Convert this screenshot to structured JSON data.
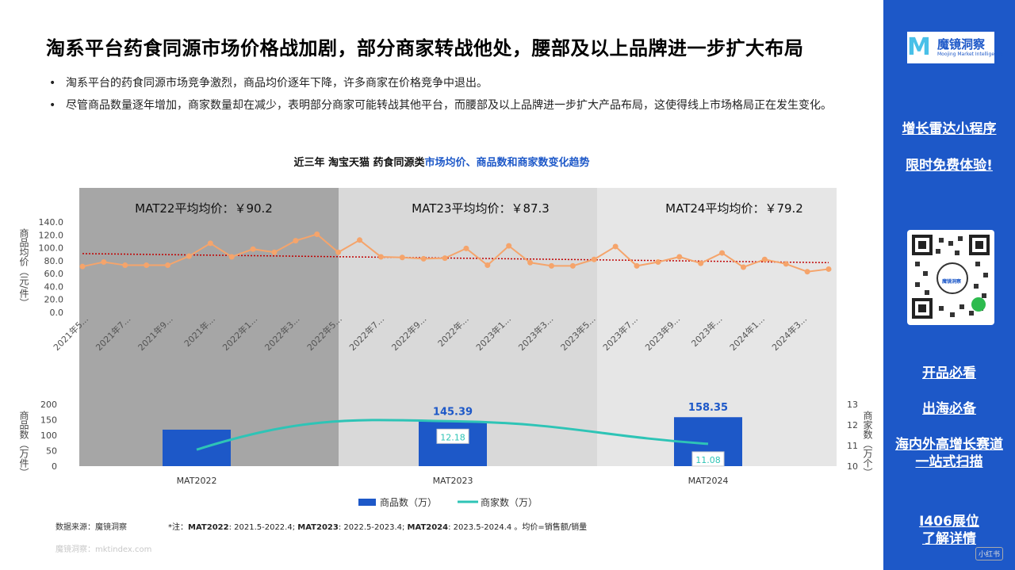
{
  "title": "淘系平台药食同源市场价格战加剧，部分商家转战他处，腰部及以上品牌进一步扩大布局",
  "bullets": [
    "淘系平台的药食同源市场竞争激烈，商品均价逐年下降，许多商家在价格竞争中退出。",
    "尽管商品数量逐年增加，商家数量却在减少，表明部分商家可能转战其他平台，而腰部及以上品牌进一步扩大产品布局，这使得线上市场格局正在发生变化。"
  ],
  "chart_header": {
    "prefix": "近三年 淘宝天猫 药食同源类",
    "highlight": "市场均价、商品数和商家数变化趋势"
  },
  "colors": {
    "accent": "#1d58c8",
    "price_line": "#f5a46b",
    "trend_line": "#c00000",
    "shop_line": "#2ec4b6",
    "period1_bg": "#a6a6a6",
    "period2_bg": "#d9d9d9",
    "period3_bg": "#e6e6e6"
  },
  "chart_data": [
    {
      "type": "line",
      "ylabel": "商品均价（元/件）",
      "ylim": [
        0,
        140
      ],
      "yticks": [
        "0.0",
        "20.0",
        "40.0",
        "60.0",
        "80.0",
        "100.0",
        "120.0",
        "140.0"
      ],
      "x_labels": [
        "2021年5...",
        "2021年7...",
        "2021年9...",
        "2021年...",
        "2022年1...",
        "2022年3...",
        "2022年5...",
        "2022年7...",
        "2022年9...",
        "2022年...",
        "2023年1...",
        "2023年3...",
        "2023年5...",
        "2023年7...",
        "2023年9...",
        "2023年...",
        "2024年1...",
        "2024年3..."
      ],
      "values": [
        71,
        78,
        73,
        73,
        73,
        87,
        107,
        86,
        98,
        93,
        111,
        121,
        93,
        112,
        86,
        85,
        83,
        84,
        99,
        73,
        103,
        77,
        72,
        72,
        82,
        102,
        72,
        78,
        86,
        76,
        92,
        70,
        82,
        75,
        63,
        67
      ],
      "trendline": [
        91,
        77
      ],
      "period_annotations": [
        "MAT22平均均价：￥90.2",
        "MAT23平均均价：￥87.3",
        "MAT24平均均价：￥79.2"
      ]
    },
    {
      "type": "bar",
      "categories": [
        "MAT2022",
        "MAT2023",
        "MAT2024"
      ],
      "series": [
        {
          "name": "商品数（万）",
          "axis": "left",
          "values": [
            118,
            145.39,
            158.35
          ],
          "labels": [
            "",
            "145.39",
            "158.35"
          ]
        },
        {
          "name": "商家数（万）",
          "axis": "right",
          "type": "line",
          "values": [
            10.8,
            12.18,
            11.08
          ],
          "labels": [
            "",
            "12.18",
            "11.08"
          ]
        }
      ],
      "ylabel_left": "商品数（万件）",
      "ylabel_right": "商家数（万个）",
      "ylim_left": [
        0,
        200
      ],
      "yticks_left": [
        "0",
        "50",
        "100",
        "150",
        "200"
      ],
      "ylim_right": [
        10,
        13
      ],
      "yticks_right": [
        "10",
        "11",
        "12",
        "13"
      ]
    }
  ],
  "footer": {
    "source": "数据来源：魔镜洞察",
    "note_prefix": "*注：",
    "note_parts": [
      {
        "bold": "MAT2022",
        "text": ": 2021.5-2022.4; "
      },
      {
        "bold": "MAT2023",
        "text": ": 2022.5-2023.4; "
      },
      {
        "bold": "MAT2024",
        "text": ": 2023.5-2024.4 。均价=销售额/销量"
      }
    ],
    "watermark": "魔镜洞察：mktindex.com"
  },
  "sidebar": {
    "logo_mark": "M",
    "logo_name": "魔镜洞察",
    "logo_sub": "Moojing Market Intelligence",
    "links": [
      "增长雷达小程序",
      "限时免费体验!",
      "开品必看",
      "出海必备",
      "海内外高增长赛道一站式扫描",
      "I406展位了解详情"
    ],
    "qr_label": "魔镜洞察",
    "corner_text": "小红书"
  }
}
